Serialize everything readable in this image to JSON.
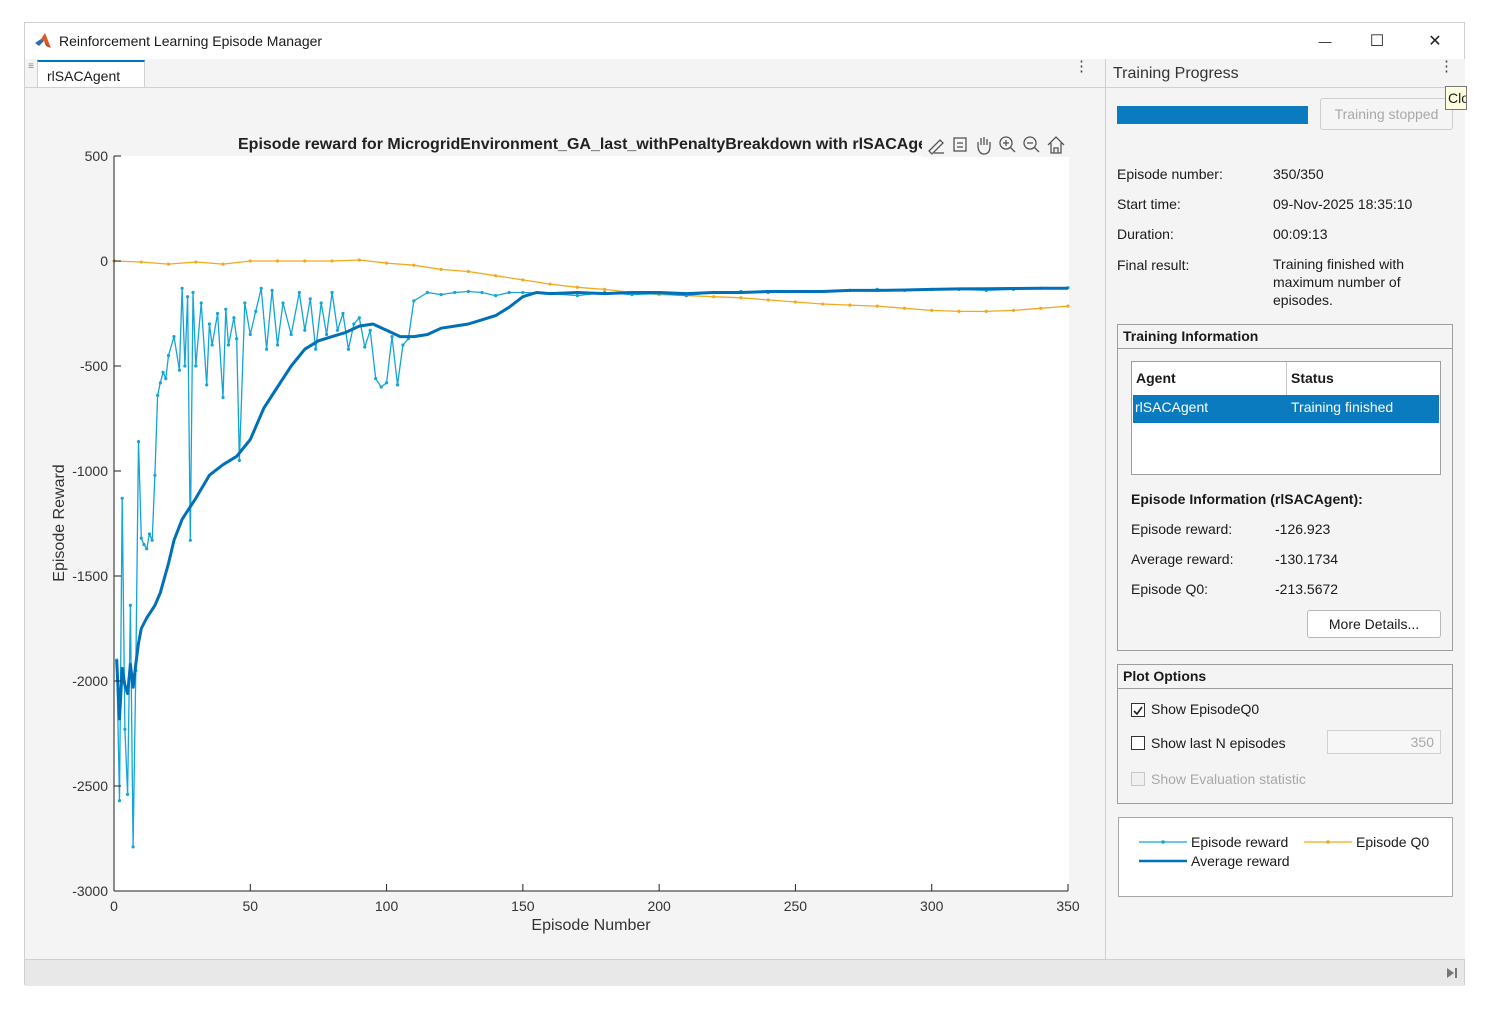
{
  "window": {
    "title": "Reinforcement Learning Episode Manager",
    "minimize_glyph": "—",
    "maximize_glyph": "☐",
    "close_glyph": "✕"
  },
  "tab": {
    "label": "rlSACAgent"
  },
  "tooltip": {
    "text": "Clo"
  },
  "plot_toolbar": {
    "icons": [
      "brush-icon",
      "datatip-icon",
      "pan-icon",
      "zoom-in-icon",
      "zoom-out-icon",
      "home-icon"
    ]
  },
  "chart_data": {
    "type": "line",
    "title": "Episode reward for MicrogridEnvironment_GA_last_withPenaltyBreakdown with rlSACAge",
    "xlabel": "Episode Number",
    "ylabel": "Episode Reward",
    "xlim": [
      0,
      350
    ],
    "ylim": [
      -3000,
      500
    ],
    "xticks": [
      0,
      50,
      100,
      150,
      200,
      250,
      300,
      350
    ],
    "yticks": [
      500,
      0,
      -500,
      -1000,
      -1500,
      -2000,
      -2500,
      -3000
    ],
    "grid": false,
    "series": [
      {
        "name": "Episode reward",
        "color": "#12a5d6",
        "markers": true,
        "x": [
          1,
          2,
          3,
          4,
          5,
          6,
          7,
          8,
          9,
          10,
          11,
          12,
          13,
          14,
          15,
          16,
          17,
          18,
          19,
          20,
          22,
          24,
          25,
          26,
          27,
          28,
          29,
          30,
          32,
          34,
          35,
          36,
          38,
          40,
          41,
          42,
          44,
          45,
          46,
          48,
          50,
          52,
          54,
          56,
          58,
          60,
          62,
          65,
          68,
          70,
          72,
          74,
          76,
          78,
          80,
          82,
          84,
          86,
          88,
          90,
          92,
          94,
          96,
          98,
          100,
          102,
          104,
          106,
          108,
          110,
          115,
          120,
          125,
          130,
          135,
          140,
          145,
          150,
          160,
          170,
          180,
          190,
          200,
          210,
          220,
          230,
          240,
          250,
          260,
          270,
          280,
          290,
          300,
          310,
          320,
          330,
          340,
          350
        ],
        "y": [
          -1900,
          -2570,
          -1130,
          -2230,
          -2540,
          -1640,
          -2790,
          -1950,
          -860,
          -1320,
          -1350,
          -1370,
          -1300,
          -1330,
          -1020,
          -640,
          -580,
          -530,
          -560,
          -450,
          -360,
          -520,
          -130,
          -500,
          -170,
          -1330,
          -150,
          -500,
          -200,
          -590,
          -300,
          -400,
          -250,
          -650,
          -230,
          -400,
          -270,
          -370,
          -950,
          -200,
          -350,
          -240,
          -130,
          -420,
          -140,
          -400,
          -200,
          -350,
          -150,
          -330,
          -180,
          -420,
          -200,
          -350,
          -150,
          -330,
          -250,
          -420,
          -300,
          -270,
          -410,
          -330,
          -560,
          -600,
          -580,
          -360,
          -590,
          -400,
          -370,
          -190,
          -150,
          -160,
          -150,
          -145,
          -150,
          -165,
          -150,
          -150,
          -155,
          -165,
          -150,
          -160,
          -155,
          -165,
          -150,
          -145,
          -150,
          -145,
          -145,
          -140,
          -135,
          -140,
          -135,
          -135,
          -140,
          -135,
          -130,
          -127
        ]
      },
      {
        "name": "Average reward",
        "color": "#0070b8",
        "markers": false,
        "x": [
          1,
          2,
          3,
          4,
          5,
          6,
          7,
          8,
          9,
          10,
          12,
          15,
          17,
          20,
          22,
          25,
          28,
          30,
          35,
          40,
          45,
          50,
          55,
          60,
          65,
          70,
          75,
          80,
          85,
          90,
          95,
          100,
          105,
          110,
          115,
          120,
          125,
          130,
          135,
          140,
          145,
          150,
          155,
          160,
          170,
          180,
          190,
          200,
          210,
          220,
          230,
          240,
          250,
          260,
          270,
          280,
          290,
          300,
          310,
          320,
          330,
          340,
          350
        ],
        "y": [
          -1900,
          -2180,
          -1940,
          -2020,
          -2060,
          -1920,
          -2030,
          -1920,
          -1820,
          -1750,
          -1700,
          -1640,
          -1580,
          -1440,
          -1330,
          -1230,
          -1170,
          -1130,
          -1020,
          -970,
          -930,
          -850,
          -700,
          -600,
          -500,
          -420,
          -380,
          -360,
          -340,
          -310,
          -300,
          -330,
          -360,
          -360,
          -350,
          -320,
          -310,
          -300,
          -280,
          -260,
          -220,
          -170,
          -150,
          -155,
          -150,
          -155,
          -150,
          -150,
          -155,
          -150,
          -150,
          -145,
          -145,
          -145,
          -140,
          -140,
          -138,
          -135,
          -133,
          -132,
          -131,
          -130,
          -130
        ]
      },
      {
        "name": "Episode Q0",
        "color": "#f2a91e",
        "markers": true,
        "x": [
          0,
          10,
          20,
          30,
          40,
          50,
          60,
          70,
          80,
          90,
          100,
          110,
          120,
          130,
          140,
          150,
          160,
          170,
          180,
          190,
          200,
          210,
          220,
          230,
          240,
          250,
          260,
          270,
          280,
          290,
          300,
          310,
          320,
          330,
          340,
          350
        ],
        "y": [
          0,
          -5,
          -15,
          -5,
          -15,
          0,
          0,
          0,
          0,
          5,
          -10,
          -20,
          -40,
          -50,
          -70,
          -90,
          -110,
          -125,
          -135,
          -150,
          -160,
          -165,
          -170,
          -175,
          -185,
          -195,
          -205,
          -210,
          -215,
          -225,
          -235,
          -240,
          -240,
          -235,
          -225,
          -215
        ]
      }
    ]
  },
  "panel": {
    "title": "Training Progress",
    "progress_fraction": 1.0,
    "stop_button": "Training stopped",
    "episode_number_label": "Episode number:",
    "episode_number_value": "350/350",
    "start_time_label": "Start time:",
    "start_time_value": "09-Nov-2025 18:35:10",
    "duration_label": "Duration:",
    "duration_value": "00:09:13",
    "final_result_label": "Final result:",
    "final_result_value": [
      "Training finished with",
      "maximum number of",
      "episodes."
    ]
  },
  "training_info": {
    "heading": "Training Information",
    "columns": [
      "Agent",
      "Status"
    ],
    "rows": [
      {
        "agent": "rlSACAgent",
        "status": "Training finished"
      }
    ],
    "episode_info_heading": "Episode Information (rlSACAgent):",
    "episode_reward_label": "Episode reward:",
    "episode_reward_value": "-126.923",
    "average_reward_label": "Average reward:",
    "average_reward_value": "-130.1734",
    "episode_q0_label": "Episode Q0:",
    "episode_q0_value": "-213.5672",
    "more_details": "More Details..."
  },
  "plot_options": {
    "heading": "Plot Options",
    "show_q0_label": "Show EpisodeQ0",
    "show_q0_checked": true,
    "show_last_n_label": "Show last N episodes",
    "show_last_n_checked": false,
    "last_n_value": "350",
    "show_eval_label": "Show Evaluation statistic",
    "show_eval_enabled": false
  },
  "legend": {
    "episode_reward": "Episode reward",
    "episode_q0": "Episode Q0",
    "average_reward": "Average reward"
  }
}
